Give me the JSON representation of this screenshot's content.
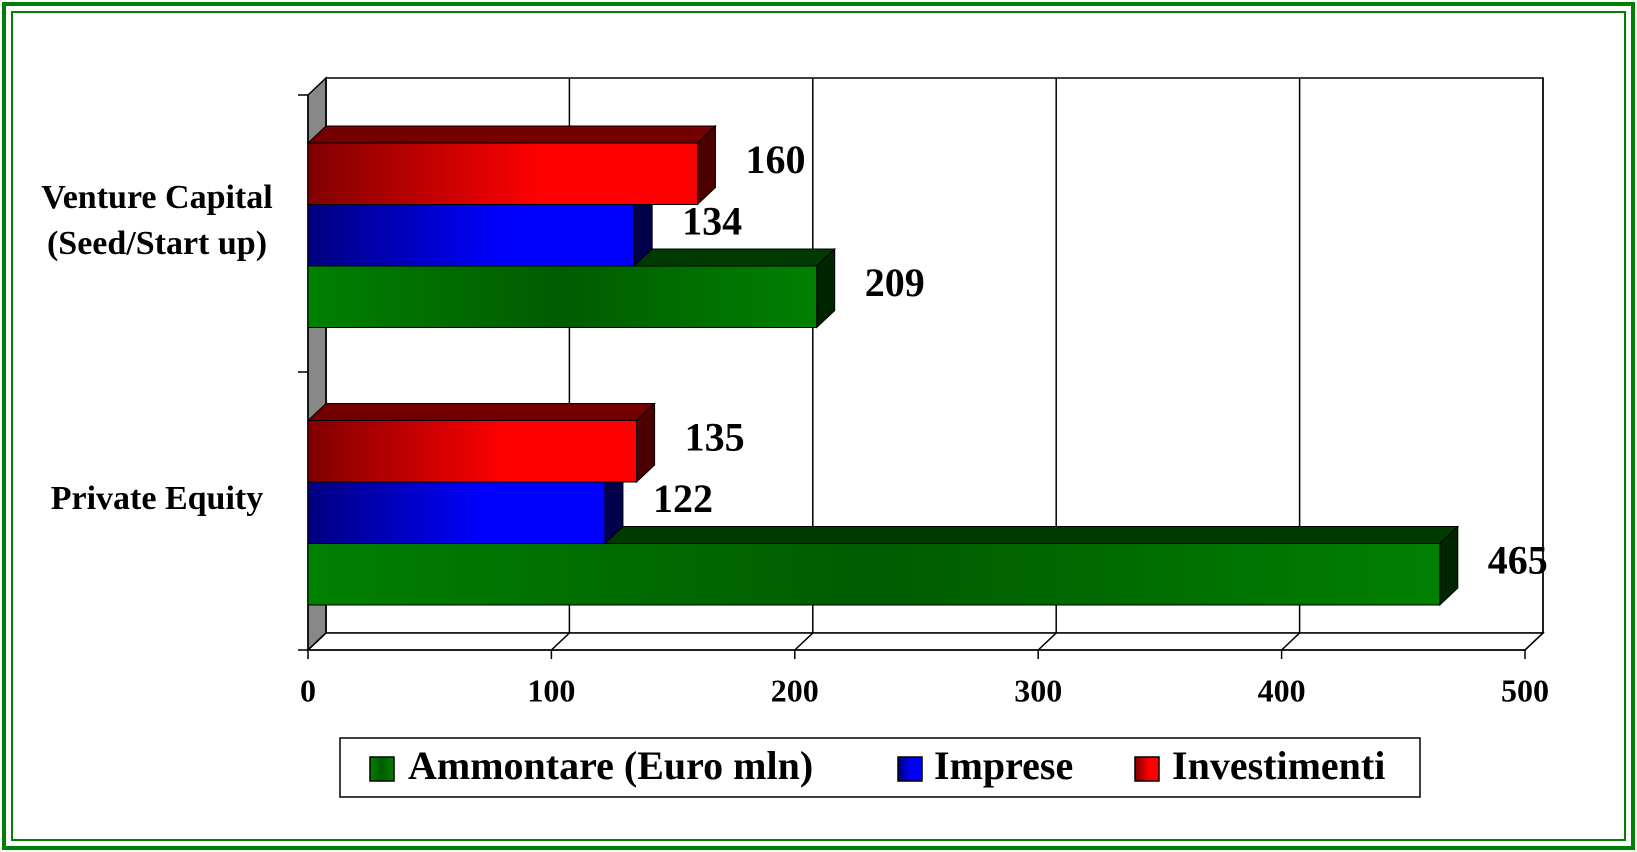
{
  "chart_data": {
    "type": "bar",
    "orientation": "horizontal",
    "categories": [
      "Venture Capital (Seed/Start up)",
      "Private Equity"
    ],
    "series": [
      {
        "name": "Ammontare (Euro mln)",
        "color": "#008000",
        "values": [
          209,
          465
        ]
      },
      {
        "name": "Imprese",
        "color": "#0000ff",
        "values": [
          134,
          122
        ]
      },
      {
        "name": "Investimenti",
        "color": "#ff0000",
        "values": [
          160,
          135
        ]
      }
    ],
    "xlim": [
      0,
      500
    ],
    "xticks": [
      0,
      100,
      200,
      300,
      400,
      500
    ],
    "grid": true,
    "legend": "bottom"
  }
}
